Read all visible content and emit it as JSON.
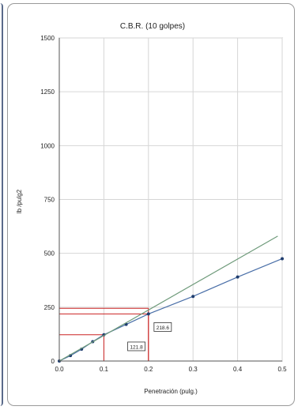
{
  "chart_data": {
    "type": "line",
    "title": "C.B.R. (10 golpes)",
    "xlabel": "Penetración (pulg.)",
    "ylabel": "lb /pulg2",
    "xlim": [
      0,
      0.5
    ],
    "ylim": [
      0,
      1500
    ],
    "x_ticks": [
      0.0,
      0.1,
      0.2,
      0.3,
      0.4,
      0.5
    ],
    "x_tick_labels": [
      "0.0",
      "0.1",
      "0.2",
      "0.3",
      "0.4",
      "0.5"
    ],
    "y_ticks": [
      0,
      250,
      500,
      750,
      1000,
      1250,
      1500
    ],
    "y_tick_labels": [
      "0",
      "250",
      "500",
      "750",
      "1000",
      "1250",
      "1500"
    ],
    "grid": true,
    "series": [
      {
        "x": [
          0,
          0.025,
          0.05,
          0.075,
          0.1,
          0.15,
          0.2,
          0.3,
          0.4,
          0.5
        ],
        "y": [
          0,
          25,
          55,
          90,
          121.8,
          170,
          218.6,
          300,
          390,
          475
        ],
        "color": "#4a6fa8",
        "markers": true
      },
      {
        "x": [
          0,
          0.49
        ],
        "y": [
          0,
          580
        ],
        "color": "#6e9a7a",
        "markers": false
      }
    ],
    "reference_lines": [
      {
        "x": 0.1,
        "y": 121.8,
        "color": "#cc2222"
      },
      {
        "x": 0.2,
        "y": 218.6,
        "color": "#cc2222"
      },
      {
        "x": 0.2,
        "y": 245,
        "color": "#cc2222"
      }
    ],
    "annotations": [
      {
        "text": "218.6",
        "x": 0.232,
        "y": 158
      },
      {
        "text": "121.8",
        "x": 0.173,
        "y": 68
      }
    ]
  }
}
